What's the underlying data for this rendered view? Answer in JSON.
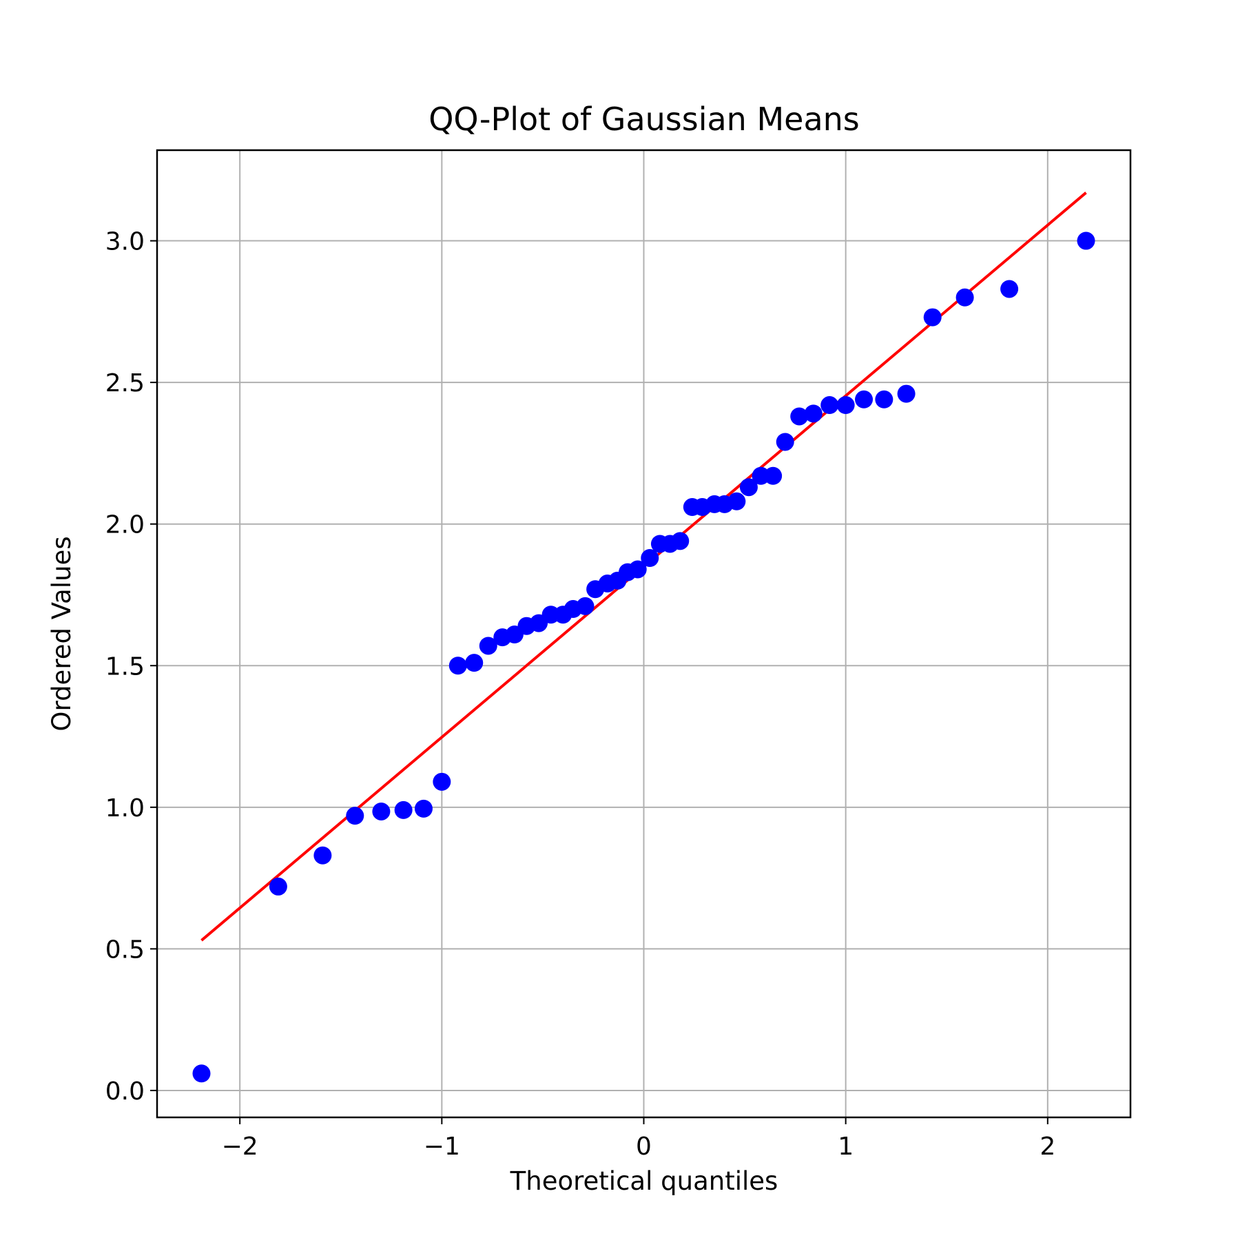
{
  "chart_data": {
    "type": "scatter",
    "title": "QQ-Plot of Gaussian Means",
    "xlabel": "Theoretical quantiles",
    "ylabel": "Ordered Values",
    "xlim": [
      -2.41,
      2.41
    ],
    "ylim": [
      -0.095,
      3.32
    ],
    "xticks": [
      -2,
      -1,
      0,
      1,
      2
    ],
    "xtick_labels": [
      "−2",
      "−1",
      "0",
      "1",
      "2"
    ],
    "yticks": [
      0.0,
      0.5,
      1.0,
      1.5,
      2.0,
      2.5,
      3.0
    ],
    "ytick_labels": [
      "0.0",
      "0.5",
      "1.0",
      "1.5",
      "2.0",
      "2.5",
      "3.0"
    ],
    "grid": true,
    "colors": {
      "points": "#0000ff",
      "fit_line": "#ff0000",
      "grid": "#b0b0b0"
    },
    "series": [
      {
        "type": "scatter",
        "x": [
          -2.19,
          -1.81,
          -1.59,
          -1.43,
          -1.3,
          -1.19,
          -1.09,
          -1.0,
          -0.92,
          -0.84,
          -0.77,
          -0.7,
          -0.64,
          -0.58,
          -0.52,
          -0.46,
          -0.4,
          -0.35,
          -0.29,
          -0.24,
          -0.18,
          -0.13,
          -0.08,
          -0.03,
          0.03,
          0.08,
          0.13,
          0.18,
          0.24,
          0.29,
          0.35,
          0.4,
          0.46,
          0.52,
          0.58,
          0.64,
          0.7,
          0.77,
          0.84,
          0.92,
          1.0,
          1.09,
          1.19,
          1.3,
          1.43,
          1.59,
          1.81,
          2.19
        ],
        "y": [
          0.06,
          0.72,
          0.83,
          0.97,
          0.985,
          0.99,
          0.995,
          1.09,
          1.5,
          1.51,
          1.57,
          1.6,
          1.61,
          1.64,
          1.65,
          1.68,
          1.68,
          1.7,
          1.71,
          1.77,
          1.79,
          1.8,
          1.83,
          1.84,
          1.88,
          1.93,
          1.93,
          1.94,
          2.06,
          2.06,
          2.07,
          2.07,
          2.08,
          2.13,
          2.17,
          2.17,
          2.29,
          2.38,
          2.39,
          2.42,
          2.42,
          2.44,
          2.44,
          2.46,
          2.73,
          2.8,
          2.83,
          3.0
        ]
      },
      {
        "type": "line",
        "x": [
          -2.19,
          2.19
        ],
        "y": [
          0.53,
          3.17
        ]
      }
    ]
  }
}
